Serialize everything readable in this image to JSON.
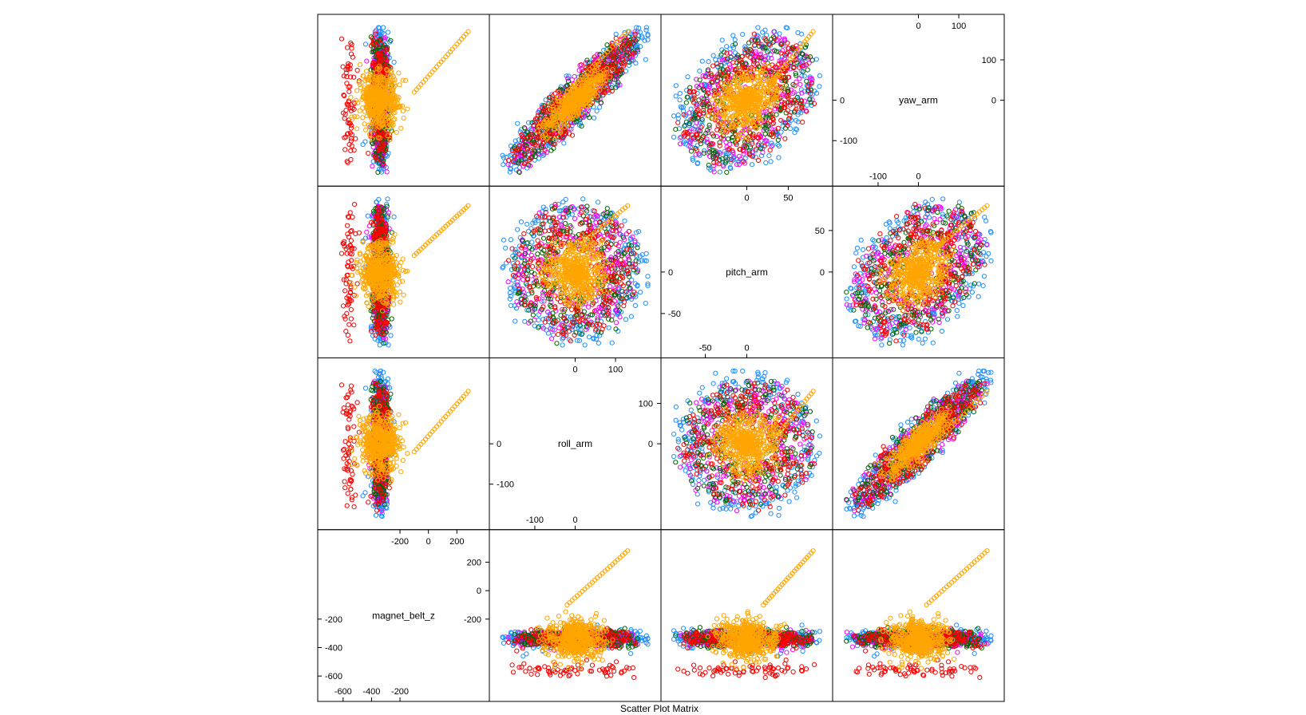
{
  "chart_data": {
    "type": "scatter",
    "subtitle": "Scatter Plot Matrix",
    "variables": [
      {
        "name": "magnet_belt_z",
        "range": [
          -700,
          350
        ],
        "ticks_low": [
          -600,
          -400,
          -200
        ],
        "ticks_high": [
          -200,
          0,
          200
        ]
      },
      {
        "name": "roll_arm",
        "range": [
          -185,
          185
        ],
        "ticks_low": [
          -100,
          0
        ],
        "ticks_high": [
          0,
          100
        ]
      },
      {
        "name": "pitch_arm",
        "range": [
          -90,
          90
        ],
        "ticks_low": [
          -50,
          0
        ],
        "ticks_high": [
          0,
          50
        ]
      },
      {
        "name": "yaw_arm",
        "range": [
          -185,
          185
        ],
        "ticks_low": [
          -100,
          0
        ],
        "ticks_high": [
          0,
          100
        ]
      }
    ],
    "series": [
      {
        "color": "#1e90ff"
      },
      {
        "color": "#ff00ff"
      },
      {
        "color": "#006400"
      },
      {
        "color": "#ff0000"
      },
      {
        "color": "#ffa500"
      }
    ],
    "sample_points": [
      {
        "magnet_belt_z": -320,
        "roll_arm": -150,
        "pitch_arm": 40,
        "yaw_arm": -150
      },
      {
        "magnet_belt_z": -310,
        "roll_arm": 150,
        "pitch_arm": -30,
        "yaw_arm": 160
      },
      {
        "magnet_belt_z": -350,
        "roll_arm": 0,
        "pitch_arm": 10,
        "yaw_arm": 0
      },
      {
        "magnet_belt_z": -580,
        "roll_arm": 60,
        "pitch_arm": 5,
        "yaw_arm": -60
      },
      {
        "magnet_belt_z": -350,
        "roll_arm": 0,
        "pitch_arm": 0,
        "yaw_arm": 0
      },
      {
        "magnet_belt_z": 280,
        "roll_arm": 130,
        "pitch_arm": 80,
        "yaw_arm": 170
      }
    ],
    "grid": false,
    "legend": "none"
  }
}
